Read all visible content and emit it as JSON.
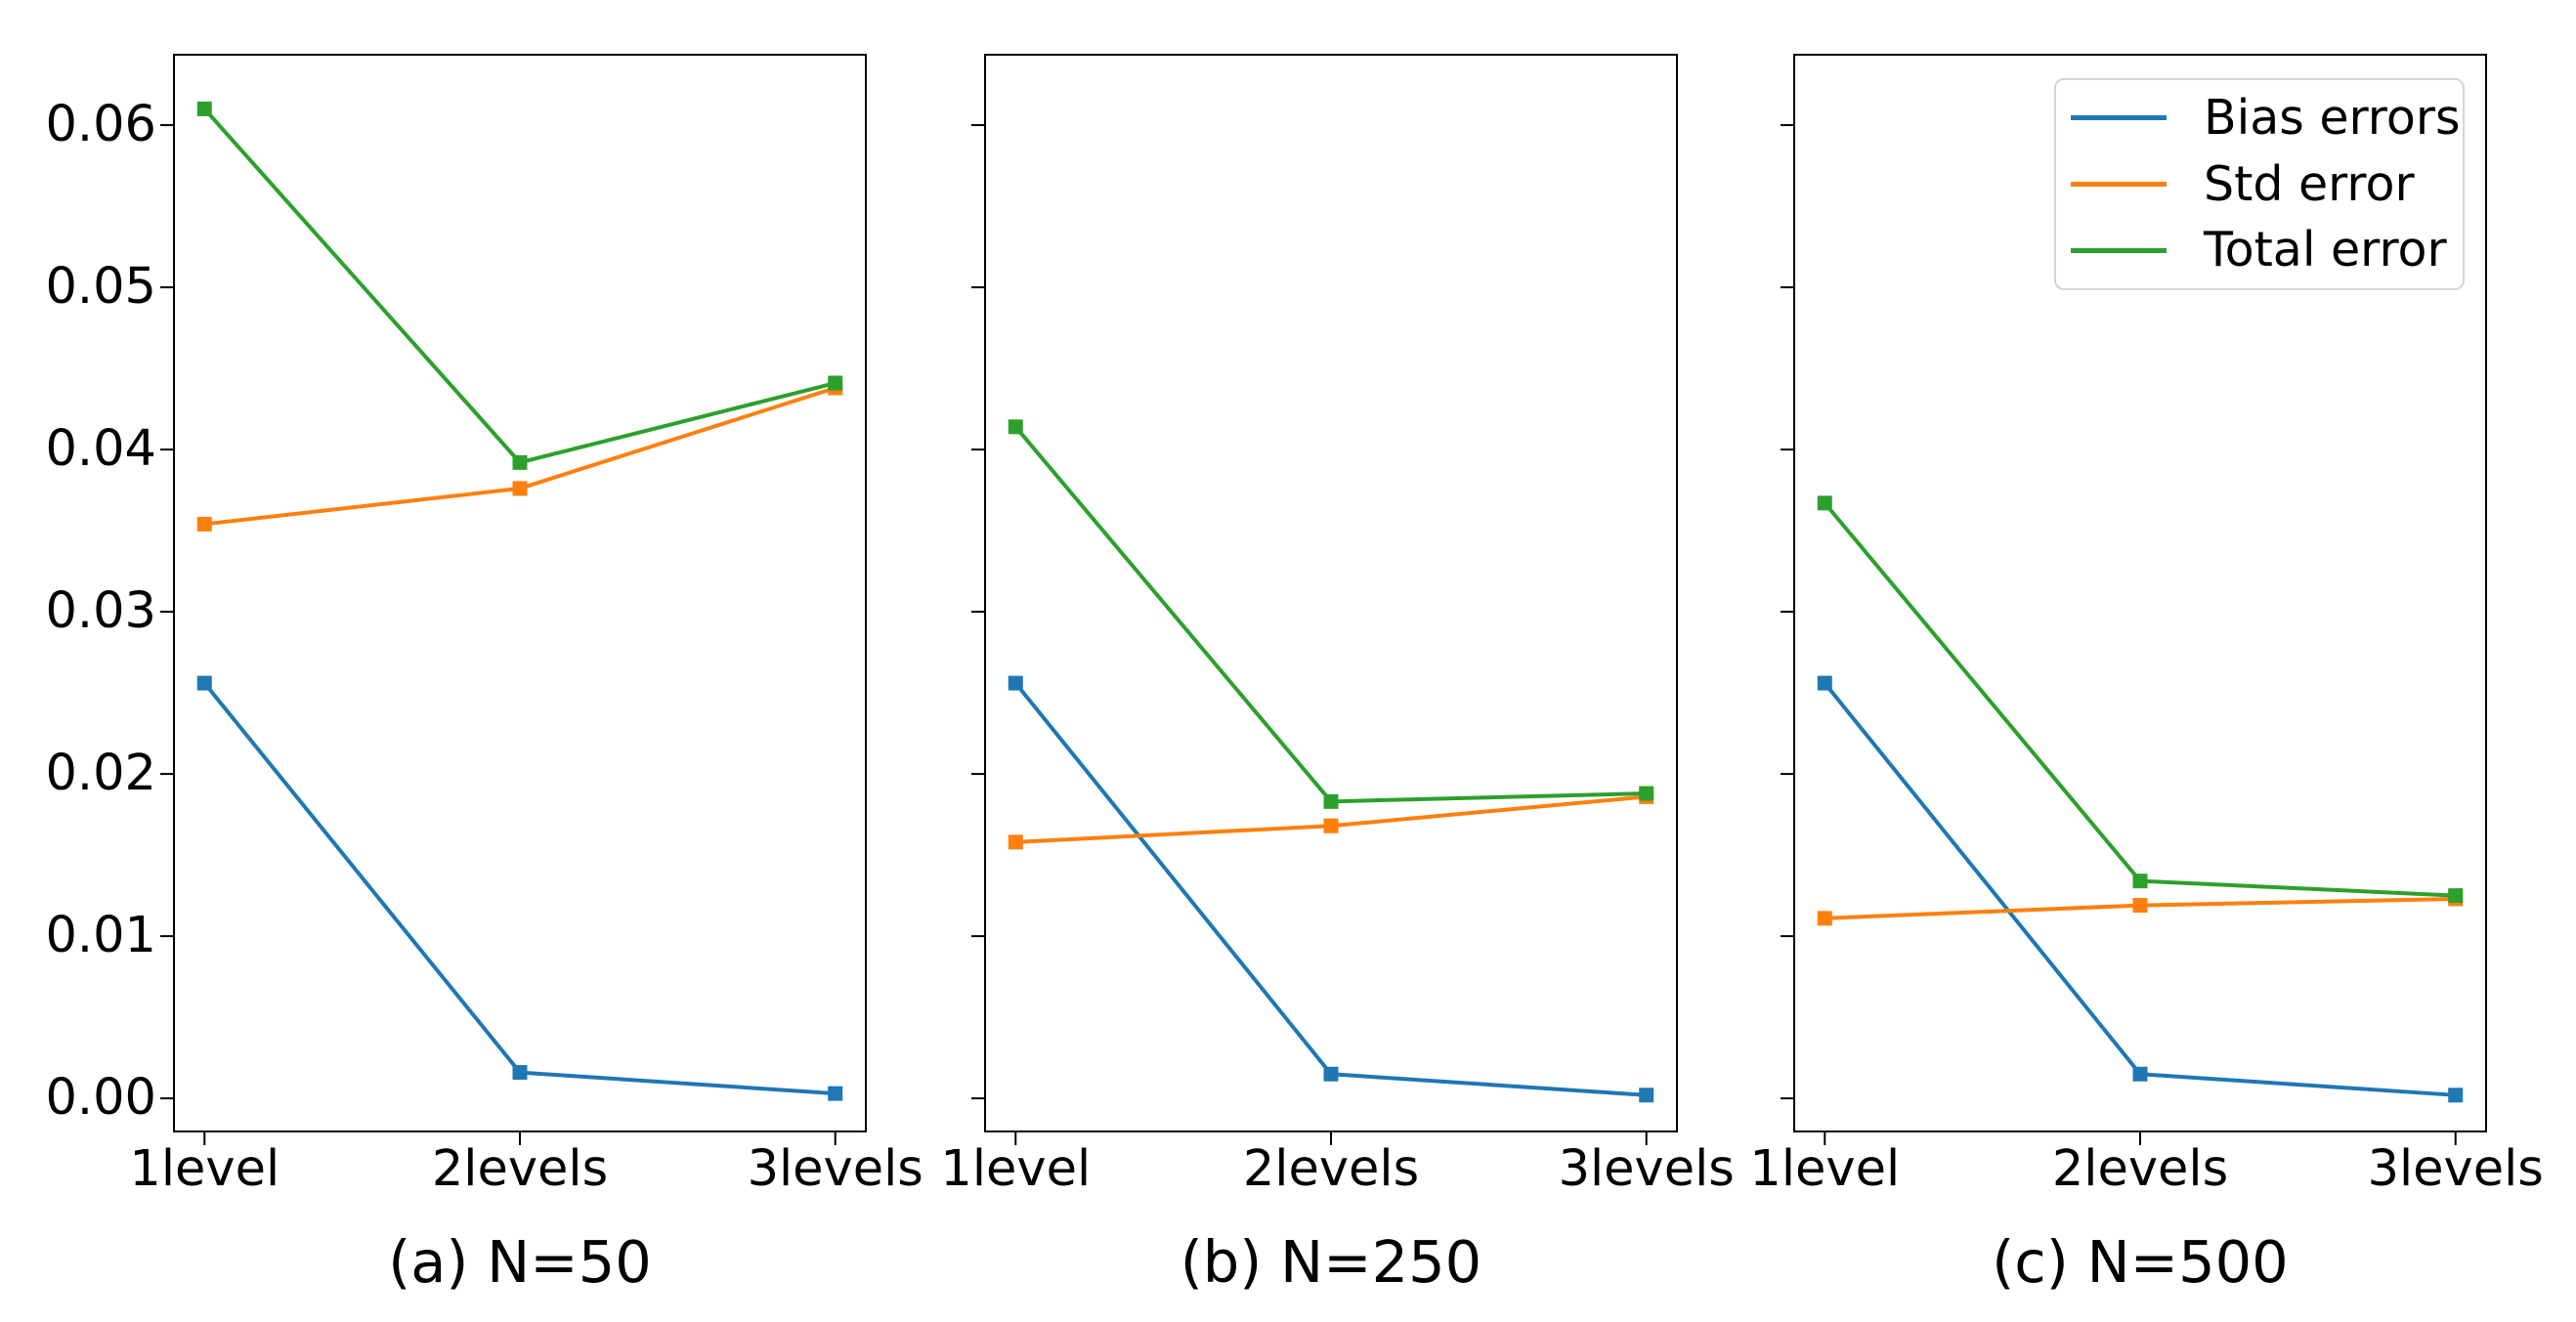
{
  "figure": {
    "background": "#ffffff",
    "text_color": "#000000",
    "spine_color": "#000000"
  },
  "legend": {
    "items": [
      {
        "label": "Bias errors",
        "color": "#1f77b4"
      },
      {
        "label": "Std error",
        "color": "#ff7f0e"
      },
      {
        "label": "Total error",
        "color": "#2ca02c"
      }
    ],
    "position": "upper right of third panel"
  },
  "axis": {
    "categories": [
      "1level",
      "2levels",
      "3levels"
    ],
    "yticks": [
      0.0,
      0.01,
      0.02,
      0.03,
      0.04,
      0.05,
      0.06
    ],
    "ytick_labels": [
      "0.00",
      "0.01",
      "0.02",
      "0.03",
      "0.04",
      "0.05",
      "0.06"
    ],
    "ylim": [
      -0.0021,
      0.0644
    ],
    "xlim": [
      -0.1,
      2.1
    ],
    "grid": "off",
    "ytick_labels_visible_on": "first panel only"
  },
  "chart_data": [
    {
      "type": "line",
      "caption": "(a) N=50",
      "categories": [
        "1level",
        "2levels",
        "3levels"
      ],
      "series": [
        {
          "name": "Bias errors",
          "color": "#1f77b4",
          "marker": "square",
          "values": [
            0.0256,
            0.0016,
            0.0003
          ]
        },
        {
          "name": "Std error",
          "color": "#ff7f0e",
          "marker": "square",
          "values": [
            0.0354,
            0.0376,
            0.0438
          ]
        },
        {
          "name": "Total error",
          "color": "#2ca02c",
          "marker": "square",
          "values": [
            0.061,
            0.0392,
            0.0441
          ]
        }
      ],
      "ylim": [
        -0.0021,
        0.0644
      ],
      "show_ytick_labels": true
    },
    {
      "type": "line",
      "caption": "(b) N=250",
      "categories": [
        "1level",
        "2levels",
        "3levels"
      ],
      "series": [
        {
          "name": "Bias errors",
          "color": "#1f77b4",
          "marker": "square",
          "values": [
            0.0256,
            0.0015,
            0.0002
          ]
        },
        {
          "name": "Std error",
          "color": "#ff7f0e",
          "marker": "square",
          "values": [
            0.0158,
            0.0168,
            0.0186
          ]
        },
        {
          "name": "Total error",
          "color": "#2ca02c",
          "marker": "square",
          "values": [
            0.0414,
            0.0183,
            0.0188
          ]
        }
      ],
      "ylim": [
        -0.0021,
        0.0644
      ],
      "show_ytick_labels": false
    },
    {
      "type": "line",
      "caption": "(c) N=500",
      "categories": [
        "1level",
        "2levels",
        "3levels"
      ],
      "series": [
        {
          "name": "Bias errors",
          "color": "#1f77b4",
          "marker": "square",
          "values": [
            0.0256,
            0.0015,
            0.0002
          ]
        },
        {
          "name": "Std error",
          "color": "#ff7f0e",
          "marker": "square",
          "values": [
            0.0111,
            0.0119,
            0.0123
          ]
        },
        {
          "name": "Total error",
          "color": "#2ca02c",
          "marker": "square",
          "values": [
            0.0367,
            0.0134,
            0.0125
          ]
        }
      ],
      "ylim": [
        -0.0021,
        0.0644
      ],
      "show_ytick_labels": false
    }
  ]
}
